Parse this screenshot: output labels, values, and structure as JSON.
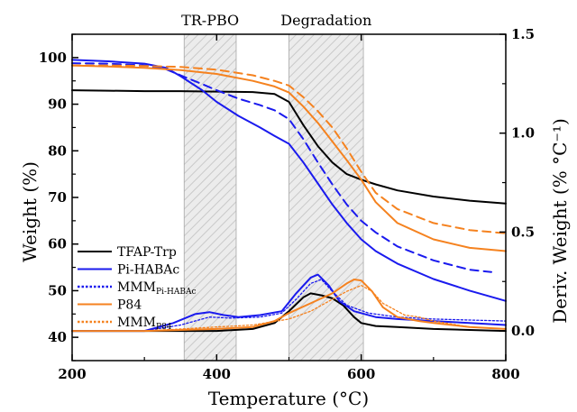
{
  "chart_data": {
    "type": "line",
    "xlabel": "Temperature (°C)",
    "ylabel_left": "Weight (%)",
    "ylabel_right": "Deriv. Weight (% °C⁻¹)",
    "xlim": [
      200,
      800
    ],
    "ylim_left": [
      35,
      105
    ],
    "ylim_right": [
      -0.15,
      1.5
    ],
    "x_ticks": [
      "200",
      "400",
      "600",
      "800"
    ],
    "y_left_ticks": [
      "40",
      "50",
      "60",
      "70",
      "80",
      "90",
      "100"
    ],
    "y_right_ticks": [
      "0.0",
      "0.5",
      "1.0",
      "1.5"
    ],
    "shaded_regions": [
      {
        "label": "TR-PBO",
        "x_range": [
          355,
          427
        ]
      },
      {
        "label": "Degradation",
        "x_range": [
          500,
          603
        ]
      }
    ],
    "legend": {
      "placement": "left",
      "entries": [
        {
          "text": "TFAP-Trp",
          "sub": "",
          "color": "#000000",
          "style": "solid"
        },
        {
          "text": "Pi-HABAc",
          "sub": "",
          "color": "#1a1aee",
          "style": "solid"
        },
        {
          "text": "MMM",
          "sub": "Pi-HABAc",
          "color": "#1a1aee",
          "style": "dotted"
        },
        {
          "text": "P84",
          "sub": "",
          "color": "#f5821f",
          "style": "solid"
        },
        {
          "text": "MMM",
          "sub": "P84",
          "color": "#f5821f",
          "style": "dotted"
        }
      ]
    },
    "weight_series": [
      {
        "name": "TFAP-Trp",
        "color": "#000000",
        "dash": "solid",
        "axis": "left",
        "x": [
          200,
          250,
          300,
          350,
          400,
          450,
          480,
          500,
          520,
          540,
          560,
          580,
          600,
          620,
          650,
          700,
          750,
          800
        ],
        "y": [
          93,
          92.9,
          92.8,
          92.8,
          92.7,
          92.6,
          92.2,
          90.5,
          85.5,
          81,
          77.5,
          75,
          73.8,
          72.8,
          71.5,
          70.2,
          69.3,
          68.7
        ]
      },
      {
        "name": "Pi-HABAc",
        "color": "#1a1aee",
        "dash": "solid",
        "axis": "left",
        "x": [
          200,
          250,
          300,
          330,
          350,
          380,
          400,
          430,
          460,
          480,
          500,
          520,
          540,
          560,
          580,
          600,
          620,
          650,
          700,
          750,
          800
        ],
        "y": [
          99.5,
          99.2,
          98.7,
          97.8,
          96,
          93,
          90.5,
          87.5,
          85,
          83.2,
          81.5,
          77.5,
          73,
          68.5,
          64.5,
          61,
          58.5,
          55.8,
          52.5,
          50,
          47.8
        ]
      },
      {
        "name": "MMM Pi-HABAc",
        "color": "#1a1aee",
        "dash": "dashed",
        "axis": "left",
        "x": [
          200,
          250,
          300,
          330,
          350,
          380,
          400,
          430,
          460,
          480,
          500,
          520,
          540,
          560,
          580,
          600,
          620,
          650,
          700,
          750,
          780
        ],
        "y": [
          98.8,
          98.7,
          98.3,
          97.5,
          96.2,
          94.3,
          93,
          91.2,
          89.8,
          88.7,
          86.8,
          82.5,
          77.5,
          72.8,
          68.5,
          65,
          62.5,
          59.5,
          56.5,
          54.5,
          54
        ]
      },
      {
        "name": "P84",
        "color": "#f5821f",
        "dash": "solid",
        "axis": "left",
        "x": [
          200,
          250,
          300,
          350,
          400,
          450,
          480,
          500,
          520,
          540,
          560,
          580,
          600,
          620,
          650,
          700,
          750,
          800
        ],
        "y": [
          98.3,
          98.1,
          97.8,
          97.3,
          96.5,
          95,
          93.8,
          92.5,
          89.5,
          86,
          82,
          78,
          73.8,
          69,
          64.5,
          61,
          59.2,
          58.5
        ]
      },
      {
        "name": "MMM P84",
        "color": "#f5821f",
        "dash": "dashed",
        "axis": "left",
        "x": [
          200,
          250,
          300,
          350,
          400,
          450,
          480,
          500,
          520,
          540,
          560,
          580,
          600,
          620,
          650,
          700,
          750,
          800
        ],
        "y": [
          98.3,
          98.3,
          98.2,
          98,
          97.4,
          96.2,
          95,
          94,
          91.5,
          88.5,
          85,
          80.5,
          75.5,
          71,
          67.5,
          64.5,
          63,
          62.3
        ]
      }
    ],
    "derivative_series": [
      {
        "name": "TFAP-Trp",
        "color": "#000000",
        "dash": "solid",
        "axis": "right",
        "x": [
          200,
          300,
          400,
          450,
          480,
          500,
          520,
          530,
          545,
          560,
          575,
          590,
          600,
          620,
          650,
          700,
          750,
          800
        ],
        "y": [
          0,
          0,
          0,
          0.01,
          0.04,
          0.1,
          0.17,
          0.19,
          0.18,
          0.165,
          0.13,
          0.07,
          0.04,
          0.025,
          0.02,
          0.01,
          0.005,
          0
        ]
      },
      {
        "name": "Pi-HABAc",
        "color": "#1a1aee",
        "dash": "solid",
        "axis": "right",
        "x": [
          200,
          300,
          340,
          370,
          390,
          410,
          430,
          460,
          490,
          510,
          530,
          540,
          555,
          570,
          590,
          620,
          650,
          700,
          750,
          800
        ],
        "y": [
          0,
          0,
          0.04,
          0.085,
          0.095,
          0.08,
          0.07,
          0.08,
          0.1,
          0.19,
          0.27,
          0.285,
          0.23,
          0.15,
          0.1,
          0.07,
          0.06,
          0.05,
          0.04,
          0.03
        ]
      },
      {
        "name": "MMM Pi-HABAc",
        "color": "#1a1aee",
        "dash": "dotted",
        "axis": "right",
        "x": [
          200,
          300,
          350,
          390,
          420,
          460,
          490,
          510,
          530,
          545,
          560,
          580,
          610,
          650,
          700,
          750,
          800
        ],
        "y": [
          0,
          0,
          0.03,
          0.07,
          0.065,
          0.07,
          0.09,
          0.16,
          0.24,
          0.26,
          0.2,
          0.13,
          0.09,
          0.07,
          0.06,
          0.055,
          0.05
        ]
      },
      {
        "name": "P84",
        "color": "#f5821f",
        "dash": "solid",
        "axis": "right",
        "x": [
          200,
          300,
          350,
          400,
          450,
          480,
          500,
          530,
          560,
          580,
          590,
          600,
          615,
          630,
          650,
          680,
          700,
          750,
          800
        ],
        "y": [
          0,
          0,
          0.005,
          0.01,
          0.02,
          0.05,
          0.09,
          0.14,
          0.19,
          0.24,
          0.26,
          0.255,
          0.2,
          0.12,
          0.07,
          0.05,
          0.04,
          0.02,
          0.01
        ]
      },
      {
        "name": "MMM P84",
        "color": "#f5821f",
        "dash": "dotted",
        "axis": "right",
        "x": [
          200,
          300,
          350,
          400,
          450,
          500,
          530,
          560,
          580,
          600,
          615,
          630,
          660,
          680,
          700,
          750,
          800
        ],
        "y": [
          0,
          0,
          0.01,
          0.02,
          0.03,
          0.06,
          0.1,
          0.16,
          0.2,
          0.23,
          0.2,
          0.14,
          0.08,
          0.07,
          0.05,
          0.02,
          0.01
        ]
      }
    ]
  }
}
